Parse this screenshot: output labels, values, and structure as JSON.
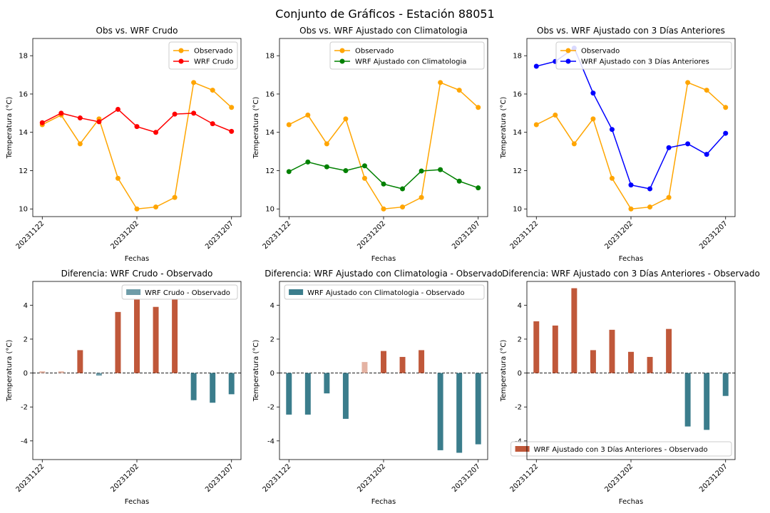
{
  "figure_title": "Conjunto de Gráficos - Estación 88051",
  "colors": {
    "observado": "#ffa500",
    "crudo": "#ff0000",
    "clim": "#008000",
    "ant3": "#0000ff",
    "bar_pos": "#c0583a",
    "bar_pos_light": "#e4b3a3",
    "bar_neg": "#3b7d8c",
    "bar_neg_light": "#6e9ca8"
  },
  "chart_data": [
    {
      "type": "line",
      "title": "Obs vs. WRF Crudo",
      "xlabel": "Fechas",
      "ylabel": "Temperatura (°C)",
      "x": [
        1,
        2,
        3,
        4,
        5,
        6,
        7,
        8,
        9,
        10,
        11
      ],
      "xticks": [
        "20231122",
        "20231202",
        "20231207"
      ],
      "xtick_positions": [
        1,
        6,
        11
      ],
      "ylim": [
        9.6,
        18.9
      ],
      "yticks": [
        10,
        12,
        14,
        16,
        18
      ],
      "legend": "top-right",
      "series": [
        {
          "name": "Observado",
          "color_key": "observado",
          "values": [
            14.4,
            14.9,
            13.4,
            14.7,
            11.6,
            10.0,
            10.1,
            10.6,
            16.6,
            16.2,
            15.3
          ]
        },
        {
          "name": "WRF Crudo",
          "color_key": "crudo",
          "values": [
            14.5,
            15.0,
            14.75,
            14.55,
            15.2,
            14.3,
            14.0,
            14.95,
            15.0,
            14.45,
            14.05
          ]
        }
      ]
    },
    {
      "type": "line",
      "title": "Obs vs. WRF Ajustado con Climatologia",
      "xlabel": "Fechas",
      "ylabel": "Temperatura (°C)",
      "x": [
        1,
        2,
        3,
        4,
        5,
        6,
        7,
        8,
        9,
        10,
        11
      ],
      "xticks": [
        "20231122",
        "20231202",
        "20231207"
      ],
      "xtick_positions": [
        1,
        6,
        11
      ],
      "ylim": [
        9.6,
        18.9
      ],
      "yticks": [
        10,
        12,
        14,
        16,
        18
      ],
      "legend": "top-right",
      "series": [
        {
          "name": "Observado",
          "color_key": "observado",
          "values": [
            14.4,
            14.9,
            13.4,
            14.7,
            11.6,
            10.0,
            10.1,
            10.6,
            16.6,
            16.2,
            15.3
          ]
        },
        {
          "name": "WRF Ajustado con Climatologia",
          "color_key": "clim",
          "values": [
            11.95,
            12.45,
            12.2,
            12.0,
            12.25,
            11.3,
            11.05,
            11.98,
            12.05,
            11.45,
            11.1
          ]
        }
      ]
    },
    {
      "type": "line",
      "title": "Obs vs. WRF Ajustado con 3 Días Anteriores",
      "xlabel": "Fechas",
      "ylabel": "Temperatura (°C)",
      "x": [
        1,
        2,
        3,
        4,
        5,
        6,
        7,
        8,
        9,
        10,
        11
      ],
      "xticks": [
        "20231122",
        "20231202",
        "20231207"
      ],
      "xtick_positions": [
        1,
        6,
        11
      ],
      "ylim": [
        9.6,
        18.9
      ],
      "yticks": [
        10,
        12,
        14,
        16,
        18
      ],
      "legend": "top-right",
      "series": [
        {
          "name": "Observado",
          "color_key": "observado",
          "values": [
            14.4,
            14.9,
            13.4,
            14.7,
            11.6,
            10.0,
            10.1,
            10.6,
            16.6,
            16.2,
            15.3
          ]
        },
        {
          "name": "WRF Ajustado con 3 Días Anteriores",
          "color_key": "ant3",
          "values": [
            17.45,
            17.7,
            18.4,
            16.05,
            14.15,
            11.25,
            11.05,
            13.2,
            13.4,
            12.85,
            13.95
          ]
        }
      ]
    },
    {
      "type": "bar",
      "title": "Diferencia: WRF Crudo - Observado",
      "xlabel": "Fechas",
      "ylabel": "Temperatura (°C)",
      "x": [
        1,
        2,
        3,
        4,
        5,
        6,
        7,
        8,
        9,
        10,
        11
      ],
      "xticks": [
        "20231122",
        "20231202",
        "20231207"
      ],
      "xtick_positions": [
        1,
        6,
        11
      ],
      "ylim": [
        -5.1,
        5.4
      ],
      "yticks": [
        -4,
        -2,
        0,
        2,
        4
      ],
      "legend": "top-right",
      "legend_label": "WRF Crudo - Observado",
      "legend_color_key": "bar_neg_light",
      "values": [
        0.1,
        0.1,
        1.35,
        -0.15,
        3.6,
        4.35,
        3.9,
        4.35,
        -1.6,
        -1.75,
        -1.25
      ]
    },
    {
      "type": "bar",
      "title": "Diferencia: WRF Ajustado con Climatologia - Observado",
      "xlabel": "Fechas",
      "ylabel": "Temperatura (°C)",
      "x": [
        1,
        2,
        3,
        4,
        5,
        6,
        7,
        8,
        9,
        10,
        11
      ],
      "xticks": [
        "20231122",
        "20231202",
        "20231207"
      ],
      "xtick_positions": [
        1,
        6,
        11
      ],
      "ylim": [
        -5.1,
        5.4
      ],
      "yticks": [
        -4,
        -2,
        0,
        2,
        4
      ],
      "legend": "top-right",
      "legend_label": "WRF Ajustado con Climatologia - Observado",
      "legend_color_key": "bar_neg",
      "values": [
        -2.45,
        -2.45,
        -1.2,
        -2.7,
        0.65,
        1.3,
        0.95,
        1.35,
        -4.55,
        -4.7,
        -4.2
      ]
    },
    {
      "type": "bar",
      "title": "Diferencia: WRF Ajustado con 3 Días Anteriores - Observado",
      "xlabel": "Fechas",
      "ylabel": "Temperatura (°C)",
      "x": [
        1,
        2,
        3,
        4,
        5,
        6,
        7,
        8,
        9,
        10,
        11
      ],
      "xticks": [
        "20231122",
        "20231202",
        "20231207"
      ],
      "xtick_positions": [
        1,
        6,
        11
      ],
      "ylim": [
        -5.1,
        5.4
      ],
      "yticks": [
        -4,
        -2,
        0,
        2,
        4
      ],
      "legend": "bottom-right",
      "legend_label": "WRF Ajustado con 3 Días Anteriores - Observado",
      "legend_color_key": "bar_pos",
      "values": [
        3.05,
        2.8,
        5.0,
        1.35,
        2.55,
        1.25,
        0.95,
        2.6,
        -3.15,
        -3.35,
        -1.35
      ]
    }
  ]
}
